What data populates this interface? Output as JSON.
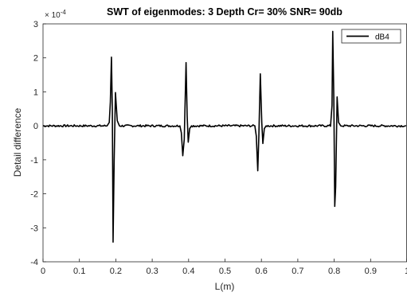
{
  "chart_data": {
    "type": "line",
    "title": "SWT of eigenmodes: 3   Depth Cr= 30%   SNR= 90db",
    "xlabel": "L(m)",
    "ylabel": "Detail difference",
    "y_multiplier_base": "× 10",
    "y_multiplier_exp": "-4",
    "xlim": [
      0,
      1
    ],
    "ylim": [
      -4,
      3
    ],
    "x_ticks": [
      0,
      0.1,
      0.2,
      0.3,
      0.4,
      0.5,
      0.6,
      0.7,
      0.8,
      0.9,
      1
    ],
    "x_tick_labels": [
      "0",
      "0.1",
      "0.2",
      "0.3",
      "0.4",
      "0.5",
      "0.6",
      "0.7",
      "0.8",
      "0.9",
      "1"
    ],
    "y_ticks": [
      -4,
      -3,
      -2,
      -1,
      0,
      1,
      2,
      3
    ],
    "y_tick_labels": [
      "-4",
      "-3",
      "-2",
      "-1",
      "0",
      "1",
      "2",
      "3"
    ],
    "grid": false,
    "legend_position": "top-right",
    "series": [
      {
        "name": "dB4",
        "color": "#000000",
        "noise_amplitude": 0.03,
        "baseline_y": 0,
        "events": [
          {
            "x": 0.188,
            "points": [
              [
                -0.012,
                0
              ],
              [
                -0.006,
                0.1
              ],
              [
                -0.003,
                0.7
              ],
              [
                0,
                2.02
              ],
              [
                0.0025,
                0.4
              ],
              [
                0.0045,
                -3.42
              ],
              [
                0.0075,
                -1.0
              ],
              [
                0.011,
                0.98
              ],
              [
                0.016,
                0.15
              ],
              [
                0.022,
                0
              ]
            ]
          },
          {
            "x": 0.384,
            "points": [
              [
                -0.008,
                0
              ],
              [
                -0.004,
                -0.2
              ],
              [
                0,
                -0.88
              ],
              [
                0.004,
                -0.4
              ],
              [
                0.009,
                1.86
              ],
              [
                0.012,
                0.3
              ],
              [
                0.015,
                -0.48
              ],
              [
                0.019,
                -0.08
              ],
              [
                0.024,
                0
              ]
            ]
          },
          {
            "x": 0.59,
            "points": [
              [
                -0.008,
                0
              ],
              [
                -0.004,
                -0.3
              ],
              [
                0,
                -1.32
              ],
              [
                0.003,
                -0.3
              ],
              [
                0.007,
                1.53
              ],
              [
                0.011,
                0.1
              ],
              [
                0.014,
                -0.52
              ],
              [
                0.018,
                -0.08
              ],
              [
                0.023,
                0
              ]
            ]
          },
          {
            "x": 0.796,
            "points": [
              [
                -0.006,
                0
              ],
              [
                -0.002,
                0.6
              ],
              [
                0,
                2.78
              ],
              [
                0.003,
                0.8
              ],
              [
                0.0055,
                -2.37
              ],
              [
                0.008,
                -1.8
              ],
              [
                0.012,
                0.85
              ],
              [
                0.016,
                0.1
              ],
              [
                0.022,
                0
              ]
            ]
          }
        ]
      }
    ]
  }
}
